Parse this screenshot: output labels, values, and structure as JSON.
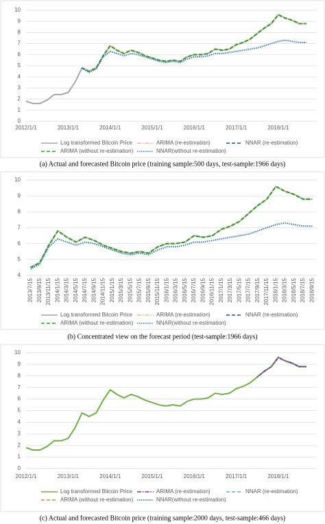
{
  "chart_data": [
    {
      "type": "line",
      "caption": "(a) Actual and forecasted Bitcoin price (training sample:500 days, test-sample:1966 days)",
      "x": [
        "2012/1/1",
        "2012/3/1",
        "2012/5/1",
        "2012/7/1",
        "2012/9/1",
        "2012/11/1",
        "2013/1/1",
        "2013/3/1",
        "2013/5/1",
        "2013/7/1",
        "2013/9/1",
        "2013/11/1",
        "2014/1/1",
        "2014/3/1",
        "2014/5/1",
        "2014/7/1",
        "2014/9/1",
        "2014/11/1",
        "2015/1/1",
        "2015/3/1",
        "2015/5/1",
        "2015/7/1",
        "2015/9/1",
        "2015/11/1",
        "2016/1/1",
        "2016/3/1",
        "2016/5/1",
        "2016/7/1",
        "2016/9/1",
        "2016/11/1",
        "2017/1/1",
        "2017/3/1",
        "2017/5/1",
        "2017/7/1",
        "2017/9/1",
        "2017/11/1",
        "2018/1/1",
        "2018/3/1",
        "2018/5/1",
        "2018/7/1",
        "2018/9/1"
      ],
      "xlim": [
        "2012/1/1",
        "2018/12/1"
      ],
      "xticks": [
        "2012/1/1",
        "2013/1/1",
        "2014/1/1",
        "2015/1/1",
        "2016/1/1",
        "2017/1/1",
        "2018/1/1"
      ],
      "ylim": [
        0,
        10
      ],
      "yticks": [
        0,
        1,
        2,
        3,
        4,
        5,
        6,
        7,
        8,
        9,
        10
      ],
      "grid": true,
      "legend": "bottom",
      "series": [
        {
          "name": "Log transformed Bitcoin Price",
          "color": "#a6a6a6",
          "dash": "solid",
          "values": [
            1.8,
            1.6,
            1.6,
            1.9,
            2.4,
            2.4,
            2.6,
            3.5,
            4.8,
            4.5,
            4.8,
            5.9,
            6.8,
            6.4,
            6.1,
            6.4,
            6.2,
            5.9,
            5.7,
            5.5,
            5.4,
            5.5,
            5.4,
            5.8,
            6.0,
            6.0,
            6.1,
            6.5,
            6.4,
            6.5,
            6.9,
            7.1,
            7.4,
            7.9,
            8.4,
            8.8,
            9.6,
            9.3,
            9.1,
            8.8,
            8.8
          ]
        },
        {
          "name": "ARIMA (re-estimation)",
          "color": "#f4b183",
          "dash": "dashdot",
          "values": [
            null,
            null,
            null,
            null,
            null,
            null,
            null,
            null,
            4.8,
            4.5,
            4.8,
            5.9,
            6.8,
            6.4,
            6.1,
            6.4,
            6.2,
            5.9,
            5.7,
            5.5,
            5.4,
            5.5,
            5.4,
            5.8,
            6.0,
            6.0,
            6.1,
            6.5,
            6.4,
            6.5,
            6.9,
            7.1,
            7.4,
            7.9,
            8.4,
            8.8,
            9.6,
            9.3,
            9.1,
            8.8,
            8.8
          ]
        },
        {
          "name": "NNAR (re-estimation)",
          "color": "#1f4e79",
          "dash": "dashed",
          "values": [
            null,
            null,
            null,
            null,
            null,
            null,
            null,
            null,
            4.8,
            4.5,
            4.8,
            5.9,
            6.8,
            6.4,
            6.1,
            6.4,
            6.2,
            5.9,
            5.7,
            5.5,
            5.4,
            5.5,
            5.4,
            5.8,
            6.0,
            6.0,
            6.1,
            6.5,
            6.4,
            6.5,
            6.9,
            7.1,
            7.4,
            7.9,
            8.4,
            8.8,
            9.6,
            9.3,
            9.1,
            8.8,
            8.8
          ]
        },
        {
          "name": "ARIMA (without re-estimation)",
          "color": "#2ca02c",
          "dash": "dashed",
          "values": [
            null,
            null,
            null,
            null,
            null,
            null,
            null,
            null,
            4.8,
            4.5,
            4.8,
            5.9,
            6.8,
            6.4,
            6.1,
            6.4,
            6.2,
            5.9,
            5.7,
            5.5,
            5.4,
            5.5,
            5.4,
            5.8,
            6.0,
            6.0,
            6.1,
            6.5,
            6.4,
            6.5,
            6.9,
            7.1,
            7.4,
            7.9,
            8.4,
            8.8,
            9.6,
            9.3,
            9.1,
            8.8,
            8.8
          ]
        },
        {
          "name": "NNAR(without re-estimation)",
          "color": "#2e75b6",
          "dash": "dotted",
          "values": [
            null,
            null,
            null,
            null,
            null,
            null,
            null,
            null,
            4.8,
            4.4,
            4.7,
            5.8,
            6.3,
            6.1,
            5.9,
            6.1,
            6.0,
            5.8,
            5.6,
            5.4,
            5.3,
            5.4,
            5.3,
            5.6,
            5.8,
            5.8,
            5.9,
            6.1,
            6.1,
            6.2,
            6.3,
            6.4,
            6.5,
            6.6,
            6.8,
            7.0,
            7.2,
            7.3,
            7.2,
            7.1,
            7.1
          ]
        }
      ]
    },
    {
      "type": "line",
      "caption": "(b) Concentrated view on the forecast period (test-sample:1966 days)",
      "categories": [
        "2013/7/15",
        "2013/9/15",
        "2013/11/15",
        "2014/1/15",
        "2014/3/15",
        "2014/5/15",
        "2014/7/15",
        "2014/9/15",
        "2014/11/15",
        "2015/1/15",
        "2015/3/15",
        "2015/5/15",
        "2015/7/15",
        "2015/9/15",
        "2015/11/15",
        "2016/1/15",
        "2016/3/15",
        "2016/5/15",
        "2016/7/15",
        "2016/9/15",
        "2016/11/15",
        "2017/1/15",
        "2017/3/15",
        "2017/5/15",
        "2017/7/15",
        "2017/9/15",
        "2017/11/15",
        "2018/1/15",
        "2018/3/15",
        "2018/5/15",
        "2018/7/15",
        "2018/9/15"
      ],
      "ylim": [
        4,
        10
      ],
      "yticks": [
        4,
        5,
        6,
        7,
        8,
        9,
        10
      ],
      "grid": true,
      "legend": "bottom",
      "series": [
        {
          "name": "Log transformed Bitcoin Price",
          "color": "#a6a6a6",
          "dash": "solid",
          "values": [
            4.5,
            4.8,
            5.9,
            6.8,
            6.4,
            6.1,
            6.4,
            6.2,
            5.9,
            5.7,
            5.5,
            5.4,
            5.5,
            5.4,
            5.8,
            6.0,
            6.0,
            6.1,
            6.5,
            6.4,
            6.5,
            6.9,
            7.1,
            7.4,
            7.9,
            8.4,
            8.8,
            9.6,
            9.3,
            9.1,
            8.8,
            8.8
          ]
        },
        {
          "name": "ARIMA (re-estimation)",
          "color": "#f4b183",
          "dash": "dashdot",
          "values": [
            4.5,
            4.8,
            5.9,
            6.8,
            6.4,
            6.1,
            6.4,
            6.2,
            5.9,
            5.7,
            5.5,
            5.4,
            5.5,
            5.4,
            5.8,
            6.0,
            6.0,
            6.1,
            6.5,
            6.4,
            6.5,
            6.9,
            7.1,
            7.4,
            7.9,
            8.4,
            8.8,
            9.6,
            9.3,
            9.1,
            8.8,
            8.8
          ]
        },
        {
          "name": "NNAR (re-estimation)",
          "color": "#1f4e79",
          "dash": "dashed",
          "values": [
            4.5,
            4.8,
            5.9,
            6.8,
            6.4,
            6.1,
            6.4,
            6.2,
            5.9,
            5.7,
            5.5,
            5.4,
            5.5,
            5.4,
            5.8,
            6.0,
            6.0,
            6.1,
            6.5,
            6.4,
            6.5,
            6.9,
            7.1,
            7.4,
            7.9,
            8.4,
            8.8,
            9.6,
            9.3,
            9.1,
            8.8,
            8.8
          ]
        },
        {
          "name": "ARIMA (without re-estimation)",
          "color": "#2ca02c",
          "dash": "dashed",
          "values": [
            4.5,
            4.8,
            5.9,
            6.8,
            6.4,
            6.1,
            6.4,
            6.2,
            5.9,
            5.7,
            5.5,
            5.4,
            5.5,
            5.4,
            5.8,
            6.0,
            6.0,
            6.1,
            6.5,
            6.4,
            6.5,
            6.9,
            7.1,
            7.4,
            7.9,
            8.4,
            8.8,
            9.6,
            9.3,
            9.1,
            8.8,
            8.8
          ]
        },
        {
          "name": "NNAR(without re-estimation)",
          "color": "#2e75b6",
          "dash": "dotted",
          "values": [
            4.4,
            4.7,
            5.8,
            6.3,
            6.1,
            5.9,
            6.1,
            6.0,
            5.8,
            5.6,
            5.4,
            5.3,
            5.4,
            5.3,
            5.6,
            5.8,
            5.8,
            5.9,
            6.1,
            6.1,
            6.2,
            6.3,
            6.4,
            6.5,
            6.6,
            6.8,
            7.0,
            7.2,
            7.3,
            7.2,
            7.1,
            7.1
          ]
        }
      ]
    },
    {
      "type": "line",
      "caption": "(c) Actual and forecasted Bitcoin price (training sample:2000 days, test-sample:466 days)",
      "x": [
        "2012/1/1",
        "2012/3/1",
        "2012/5/1",
        "2012/7/1",
        "2012/9/1",
        "2012/11/1",
        "2013/1/1",
        "2013/3/1",
        "2013/5/1",
        "2013/7/1",
        "2013/9/1",
        "2013/11/1",
        "2014/1/1",
        "2014/3/1",
        "2014/5/1",
        "2014/7/1",
        "2014/9/1",
        "2014/11/1",
        "2015/1/1",
        "2015/3/1",
        "2015/5/1",
        "2015/7/1",
        "2015/9/1",
        "2015/11/1",
        "2016/1/1",
        "2016/3/1",
        "2016/5/1",
        "2016/7/1",
        "2016/9/1",
        "2016/11/1",
        "2017/1/1",
        "2017/3/1",
        "2017/5/1",
        "2017/7/1",
        "2017/9/1",
        "2017/11/1",
        "2018/1/1",
        "2018/3/1",
        "2018/5/1",
        "2018/7/1",
        "2018/9/1"
      ],
      "xlim": [
        "2012/1/1",
        "2018/12/1"
      ],
      "xticks": [
        "2012/1/1",
        "2013/1/1",
        "2014/1/1",
        "2015/1/1",
        "2016/1/1",
        "2017/1/1",
        "2018/1/1"
      ],
      "ylim": [
        0,
        10
      ],
      "yticks": [
        0,
        1,
        2,
        3,
        4,
        5,
        6,
        7,
        8,
        9,
        10
      ],
      "grid": true,
      "legend": "bottom",
      "series": [
        {
          "name": "Log transformed Bitcoin Price",
          "color": "#70ad47",
          "dash": "solid",
          "values": [
            1.8,
            1.6,
            1.6,
            1.9,
            2.4,
            2.4,
            2.6,
            3.5,
            4.8,
            4.5,
            4.8,
            5.9,
            6.8,
            6.4,
            6.1,
            6.4,
            6.2,
            5.9,
            5.7,
            5.5,
            5.4,
            5.5,
            5.4,
            5.8,
            6.0,
            6.0,
            6.1,
            6.5,
            6.4,
            6.5,
            6.9,
            7.1,
            7.4,
            7.9,
            8.4,
            8.8,
            9.6,
            9.3,
            9.1,
            8.8,
            8.8
          ]
        },
        {
          "name": "ARIMA (re-estimation)",
          "color": "#7030a0",
          "dash": "dashdot",
          "values": [
            null,
            null,
            null,
            null,
            null,
            null,
            null,
            null,
            null,
            null,
            null,
            null,
            null,
            null,
            null,
            null,
            null,
            null,
            null,
            null,
            null,
            null,
            null,
            null,
            null,
            null,
            null,
            null,
            null,
            null,
            null,
            null,
            null,
            7.9,
            8.4,
            8.8,
            9.6,
            9.3,
            9.1,
            8.8,
            8.8
          ]
        },
        {
          "name": "NNAR (re-estimation)",
          "color": "#5bb5d5",
          "dash": "dashed",
          "values": [
            null,
            null,
            null,
            null,
            null,
            null,
            null,
            null,
            null,
            null,
            null,
            null,
            null,
            null,
            null,
            null,
            null,
            null,
            null,
            null,
            null,
            null,
            null,
            null,
            null,
            null,
            null,
            null,
            null,
            null,
            null,
            null,
            null,
            7.9,
            8.4,
            8.8,
            9.6,
            9.3,
            9.1,
            8.8,
            8.8
          ]
        },
        {
          "name": "ARIMA (without re-estimation)",
          "color": "#ed7d31",
          "dash": "dashed",
          "values": [
            null,
            null,
            null,
            null,
            null,
            null,
            null,
            null,
            null,
            null,
            null,
            null,
            null,
            null,
            null,
            null,
            null,
            null,
            null,
            null,
            null,
            null,
            null,
            null,
            null,
            null,
            null,
            null,
            null,
            null,
            null,
            null,
            null,
            7.9,
            8.4,
            8.8,
            9.6,
            9.3,
            9.1,
            8.8,
            8.8
          ]
        },
        {
          "name": "NNAR(without re-estimation)",
          "color": "#2e5fa8",
          "dash": "dotted",
          "values": [
            null,
            null,
            null,
            null,
            null,
            null,
            null,
            null,
            null,
            null,
            null,
            null,
            null,
            null,
            null,
            null,
            null,
            null,
            null,
            null,
            null,
            null,
            null,
            null,
            null,
            null,
            null,
            null,
            null,
            null,
            null,
            null,
            null,
            7.9,
            8.4,
            8.8,
            9.6,
            9.3,
            9.1,
            8.8,
            8.8
          ]
        }
      ]
    }
  ]
}
